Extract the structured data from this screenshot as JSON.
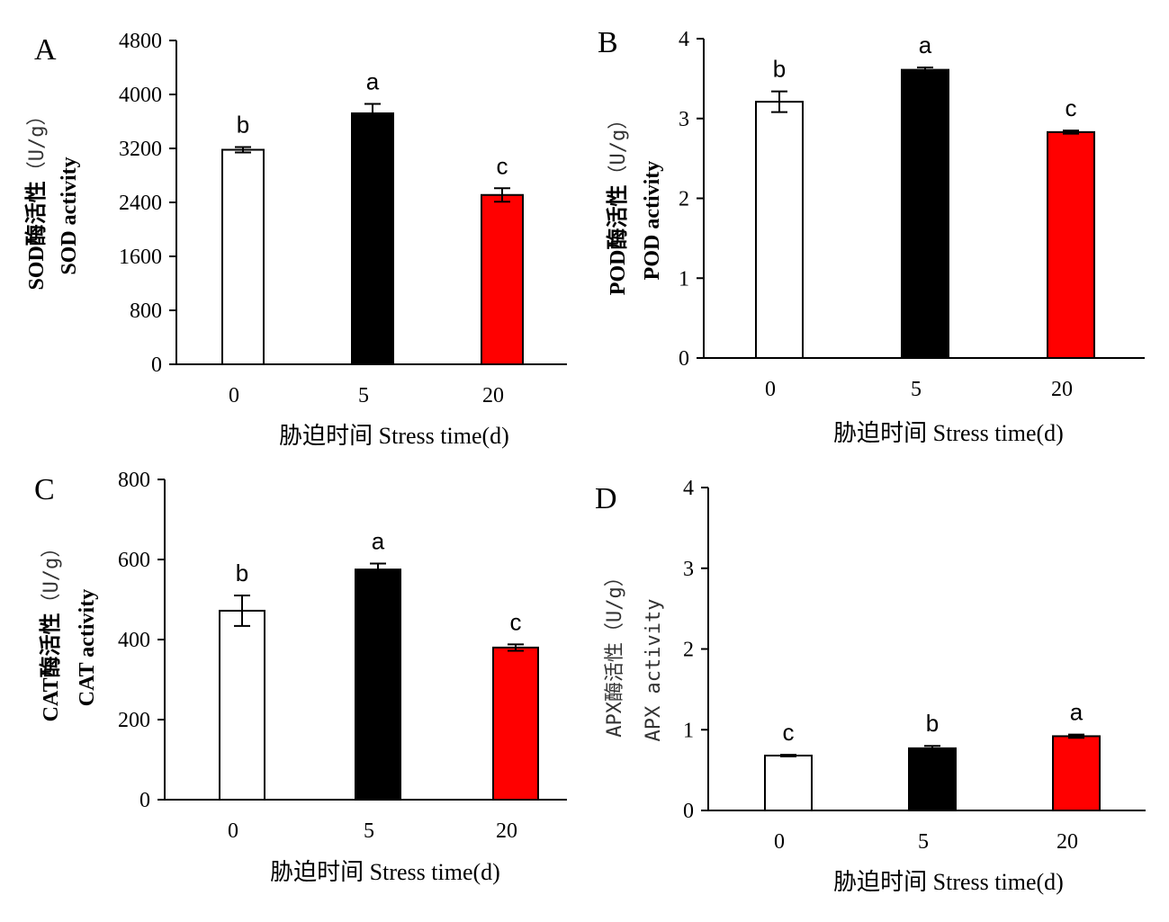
{
  "chart_data": [
    {
      "type": "bar",
      "panel": "A",
      "categories": [
        "0",
        "5",
        "20"
      ],
      "values": [
        3180,
        3720,
        2510
      ],
      "errors": [
        40,
        140,
        100
      ],
      "significance": [
        "b",
        "a",
        "c"
      ],
      "bar_colors": [
        "#ffffff",
        "#000000",
        "#ff0000"
      ],
      "ylabel_cn": "SOD酶活性",
      "ylabel_unit": "（U/g）",
      "ylabel_en": "SOD activity",
      "xlabel": "胁迫时间  Stress time(d)",
      "ylim": [
        0,
        4800
      ],
      "yticks": [
        "0",
        "800",
        "1600",
        "2400",
        "3200",
        "4000",
        "4800"
      ]
    },
    {
      "type": "bar",
      "panel": "B",
      "categories": [
        "0",
        "5",
        "20"
      ],
      "values": [
        3.21,
        3.61,
        2.83
      ],
      "errors": [
        0.13,
        0.03,
        0.02
      ],
      "significance": [
        "b",
        "a",
        "c"
      ],
      "bar_colors": [
        "#ffffff",
        "#000000",
        "#ff0000"
      ],
      "ylabel_cn": "POD酶活性",
      "ylabel_unit": "（U/g）",
      "ylabel_en": "POD activity",
      "xlabel": "胁迫时间  Stress time(d)",
      "ylim": [
        0,
        4
      ],
      "yticks": [
        "0",
        "1",
        "2",
        "3",
        "4"
      ]
    },
    {
      "type": "bar",
      "panel": "C",
      "categories": [
        "0",
        "5",
        "20"
      ],
      "values": [
        472,
        575,
        380
      ],
      "errors": [
        38,
        15,
        8
      ],
      "significance": [
        "b",
        "a",
        "c"
      ],
      "bar_colors": [
        "#ffffff",
        "#000000",
        "#ff0000"
      ],
      "ylabel_cn": "CAT酶活性",
      "ylabel_unit": "（U/g）",
      "ylabel_en": "CAT activity",
      "xlabel": "胁迫时间  Stress time(d)",
      "ylim": [
        0,
        800
      ],
      "yticks": [
        "0",
        "200",
        "400",
        "600",
        "800"
      ]
    },
    {
      "type": "bar",
      "panel": "D",
      "categories": [
        "0",
        "5",
        "20"
      ],
      "values": [
        0.68,
        0.77,
        0.92
      ],
      "errors": [
        0.01,
        0.03,
        0.02
      ],
      "significance": [
        "c",
        "b",
        "a"
      ],
      "bar_colors": [
        "#ffffff",
        "#000000",
        "#ff0000"
      ],
      "ylabel_line1": "APX酶活性（U/g）",
      "ylabel_line2": "APX activity",
      "xlabel": "胁迫时间  Stress time(d)",
      "ylim": [
        0,
        4
      ],
      "yticks": [
        "0",
        "1",
        "2",
        "3",
        "4"
      ]
    }
  ]
}
